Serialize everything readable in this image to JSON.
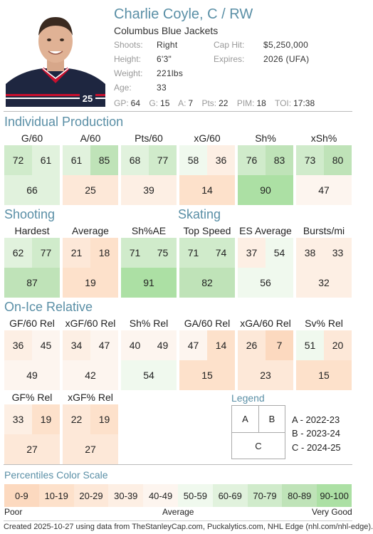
{
  "player": {
    "name": "Charlie Coyle, C / RW",
    "team": "Columbus Blue Jackets",
    "jersey_number": "25",
    "shoots_label": "Shoots:",
    "shoots": "Right",
    "height_label": "Height:",
    "height": "6'3\"",
    "weight_label": "Weight:",
    "weight": "221lbs",
    "age_label": "Age:",
    "age": "33",
    "cap_hit_label": "Cap Hit:",
    "cap_hit": "$5,250,000",
    "expires_label": "Expires:",
    "expires": "2026 (UFA)"
  },
  "stat_line": [
    {
      "label": "GP:",
      "value": "64"
    },
    {
      "label": "G:",
      "value": "15"
    },
    {
      "label": "A:",
      "value": "7"
    },
    {
      "label": "Pts:",
      "value": "22"
    },
    {
      "label": "PIM:",
      "value": "18"
    },
    {
      "label": "TOI:",
      "value": "17:38"
    }
  ],
  "sections": {
    "individual": "Individual Production",
    "shooting": "Shooting",
    "skating": "Skating",
    "onice": "On-Ice Relative"
  },
  "stats": [
    {
      "title": "G/60",
      "a": 72,
      "b": 61,
      "c": 66
    },
    {
      "title": "A/60",
      "a": 61,
      "b": 85,
      "c": 25
    },
    {
      "title": "Pts/60",
      "a": 68,
      "b": 77,
      "c": 39
    },
    {
      "title": "xG/60",
      "a": 58,
      "b": 36,
      "c": 14
    },
    {
      "title": "Sh%",
      "a": 76,
      "b": 83,
      "c": 90
    },
    {
      "title": "xSh%",
      "a": 73,
      "b": 80,
      "c": 47
    },
    {
      "title": "Hardest",
      "a": 62,
      "b": 77,
      "c": 87
    },
    {
      "title": "Average",
      "a": 21,
      "b": 18,
      "c": 19
    },
    {
      "title": "Sh%AE",
      "a": 71,
      "b": 75,
      "c": 91
    },
    {
      "title": "Top Speed",
      "a": 71,
      "b": 74,
      "c": 82
    },
    {
      "title": "ES Average",
      "a": 37,
      "b": 54,
      "c": 56
    },
    {
      "title": "Bursts/mi",
      "a": 38,
      "b": 33,
      "c": 32
    },
    {
      "title": "GF/60 Rel",
      "a": 36,
      "b": 45,
      "c": 49
    },
    {
      "title": "xGF/60 Rel",
      "a": 34,
      "b": 47,
      "c": 42
    },
    {
      "title": "Sh% Rel",
      "a": 40,
      "b": 49,
      "c": 54
    },
    {
      "title": "GA/60 Rel",
      "a": 47,
      "b": 14,
      "c": 15
    },
    {
      "title": "xGA/60 Rel",
      "a": 26,
      "b": 7,
      "c": 23
    },
    {
      "title": "Sv% Rel",
      "a": 51,
      "b": 20,
      "c": 15
    },
    {
      "title": "GF% Rel",
      "a": 33,
      "b": 19,
      "c": 27
    },
    {
      "title": "xGF% Rel",
      "a": 22,
      "b": 19,
      "c": 27
    }
  ],
  "legend": {
    "title": "Legend",
    "a": "A",
    "b": "B",
    "c": "C",
    "a_desc": "A - 2022-23",
    "b_desc": "B - 2023-24",
    "c_desc": "C - 2024-25"
  },
  "scale": {
    "title": "Percentiles Color Scale",
    "bins": [
      {
        "label": "0-9",
        "color": "#fcd9bf"
      },
      {
        "label": "10-19",
        "color": "#fde1cb"
      },
      {
        "label": "20-29",
        "color": "#fde8d8"
      },
      {
        "label": "30-39",
        "color": "#fdefe4"
      },
      {
        "label": "40-49",
        "color": "#fdf5ef"
      },
      {
        "label": "50-59",
        "color": "#f0f9ee"
      },
      {
        "label": "60-69",
        "color": "#e1f2dd"
      },
      {
        "label": "70-79",
        "color": "#d0ebcb"
      },
      {
        "label": "80-89",
        "color": "#bfe3b8"
      },
      {
        "label": "90-100",
        "color": "#ace0a4"
      }
    ],
    "poor": "Poor",
    "average": "Average",
    "very_good": "Very Good"
  },
  "footer": "Created 2025-10-27 using data from TheStanleyCap.com, Puckalytics.com, NHL Edge (nhl.com/nhl-edge).",
  "colors": {
    "accent": "#5a8fa6",
    "jersey": "#1e2640",
    "jersey_stripe": "#c8102e"
  }
}
